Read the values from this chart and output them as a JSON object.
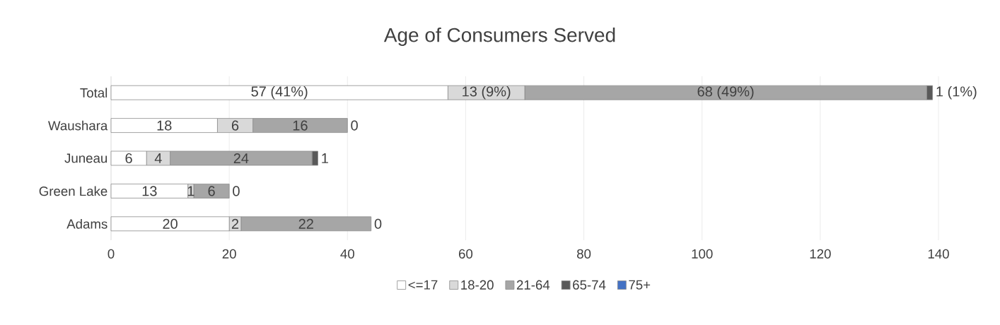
{
  "chart_data": {
    "type": "bar",
    "orientation": "horizontal",
    "stacked": true,
    "title": "Age of Consumers Served",
    "categories": [
      "Total",
      "Waushara",
      "Juneau",
      "Green Lake",
      "Adams"
    ],
    "series": [
      {
        "name": "<=17",
        "color": "#ffffff",
        "values": [
          57,
          18,
          6,
          13,
          20
        ],
        "value_labels": [
          "57 (41%)",
          "18",
          "6",
          "13",
          "20"
        ]
      },
      {
        "name": "18-20",
        "color": "#d9d9d9",
        "values": [
          13,
          6,
          4,
          1,
          2
        ],
        "value_labels": [
          "13 (9%)",
          "6",
          "4",
          "1",
          "2"
        ]
      },
      {
        "name": "21-64",
        "color": "#a6a6a6",
        "values": [
          68,
          16,
          24,
          6,
          22
        ],
        "value_labels": [
          "68 (49%)",
          "16",
          "24",
          "6",
          "22"
        ]
      },
      {
        "name": "65-74",
        "color": "#595959",
        "values": [
          1,
          0,
          1,
          0,
          0
        ],
        "value_labels": [
          "1 (1%)",
          "0",
          "1",
          "0",
          "0"
        ]
      },
      {
        "name": "75+",
        "color": "#4472c4",
        "values": [
          0,
          0,
          0,
          0,
          0
        ]
      }
    ],
    "xlim": [
      0,
      140
    ],
    "xticks": [
      0,
      20,
      40,
      60,
      80,
      100,
      120,
      140
    ],
    "grid": "x",
    "legend": "bottom"
  }
}
